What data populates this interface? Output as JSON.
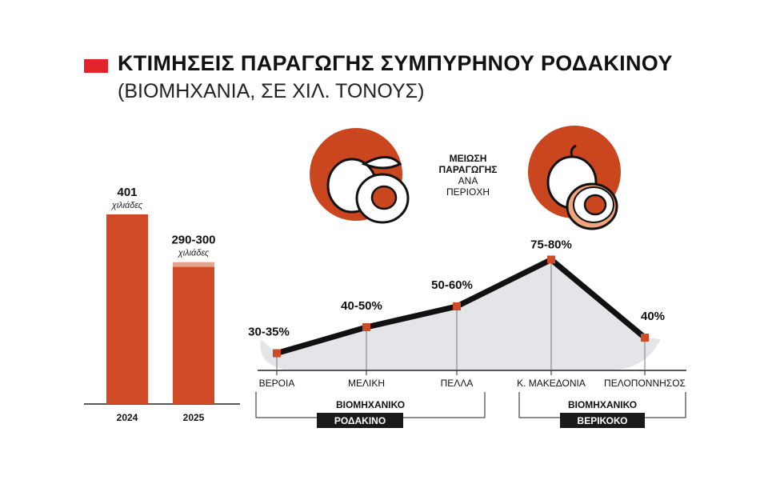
{
  "header": {
    "title": "ΚΤΙΜΗΣΕΙΣ ΠΑΡΑΓΩΓΗΣ ΣΥΜΠΥΡΗΝΟΥ ΡΟΔΑΚΙΝΟΥ",
    "subtitle": "(ΒΙΟΜΗΧΑΝΙΑ, ΣΕ ΧΙΛ. ΤΟΝΟΥΣ)"
  },
  "central_label": {
    "line1": "ΜΕΙΩΣΗ",
    "line2": "ΠΑΡΑΓΩΓΗΣ",
    "line3": "ΑΝΑ",
    "line4": "ΠΕΡΙΟΧΗ"
  },
  "groups": {
    "left": {
      "line1": "ΒΙΟΜΗΧΑΝΙΚΟ",
      "line2": "ΡΟΔΑΚΙΝΟ"
    },
    "right": {
      "line1": "ΒΙΟΜΗΧΑΝΙΚΟ",
      "line2": "ΒΕΡΙΚΟΚΟ"
    }
  },
  "colors": {
    "accent_red": "#e2232a",
    "bar": "#cf4a25",
    "bar_light": "#e7a48c",
    "icon_circle": "#c9461f",
    "line": "#111111",
    "area": "#e4e5e8"
  },
  "icons": [
    "peach-icon",
    "apricot-icon"
  ],
  "chart_data": [
    {
      "type": "bar",
      "categories": [
        "2024",
        "2025"
      ],
      "values": [
        401,
        290
      ],
      "range_top": [
        null,
        300
      ],
      "value_labels": [
        "401",
        "290-300"
      ],
      "unit_labels": [
        "χιλιάδες",
        "χιλιάδες"
      ],
      "ylim": [
        0,
        401
      ]
    },
    {
      "type": "line",
      "categories": [
        "ΒΕΡΟΙΑ",
        "ΜΕΛΙΚΗ",
        "ΠΕΛΛΑ",
        "Κ. ΜΑΚΕΔΟΝΙΑ",
        "ΠΕΛΟΠΟΝΝΗΣΟΣ"
      ],
      "values": [
        32.5,
        45,
        55,
        77.5,
        40
      ],
      "value_labels": [
        "30-35%",
        "40-50%",
        "50-60%",
        "75-80%",
        "40%"
      ],
      "ylim": [
        0,
        80
      ]
    }
  ]
}
